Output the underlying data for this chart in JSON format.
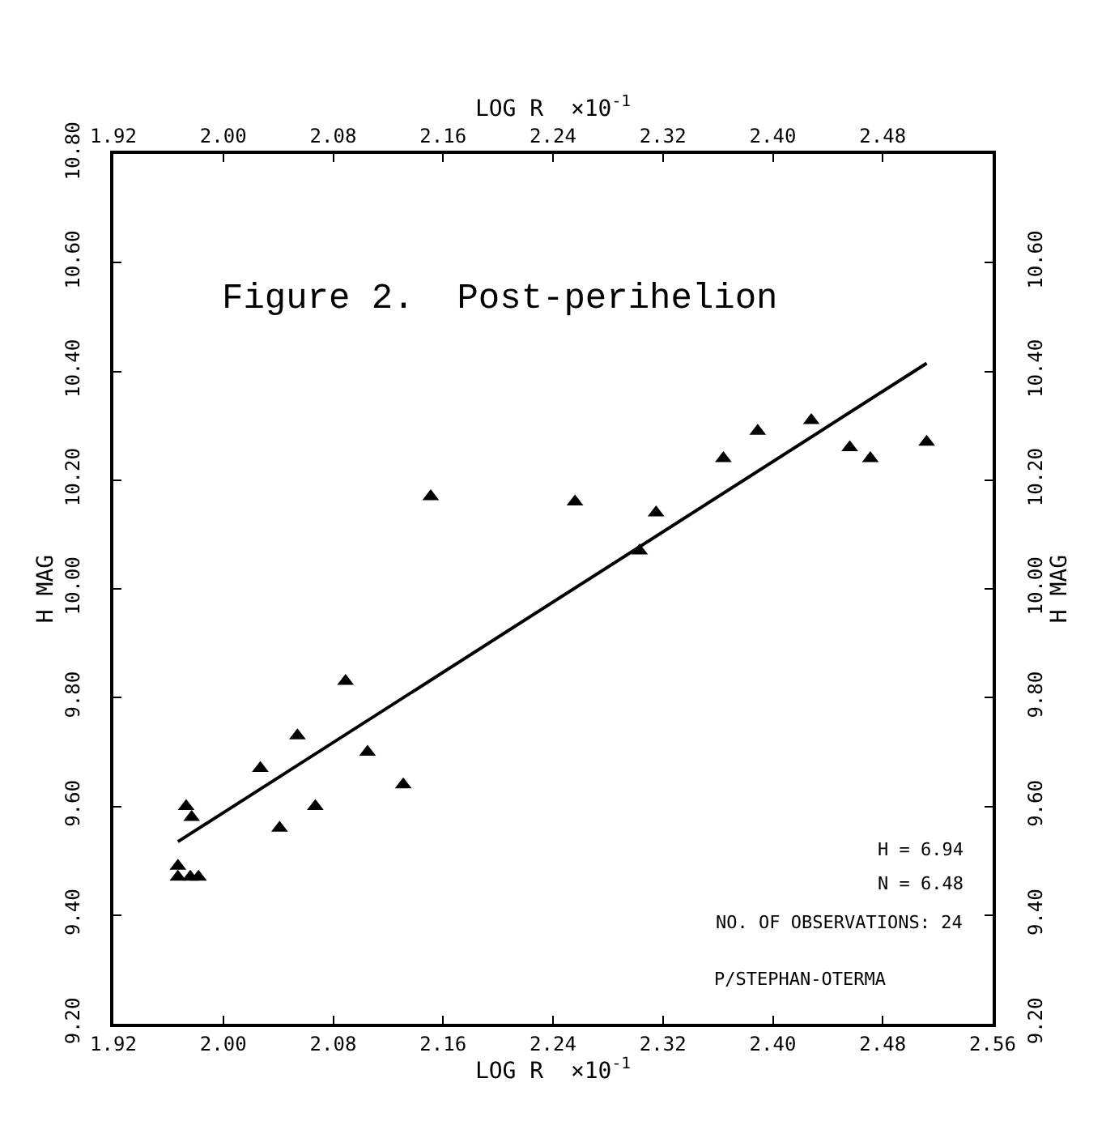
{
  "chart_data": {
    "type": "scatter",
    "title": "Figure 2.  Post-perihelion",
    "xlabel": "LOG R  ×10$^{-1}$",
    "x2label": "LOG R  ×10$^{-1}$",
    "ylabel": "H MAG",
    "y2label": "H MAG",
    "series": [
      {
        "color": "#000000",
        "marker": "triangle",
        "x": [
          2.151,
          2.089,
          2.054,
          2.027,
          2.105,
          2.131,
          2.067,
          1.973,
          1.977,
          2.041,
          1.967,
          1.967,
          1.976,
          1.982,
          2.256,
          2.315,
          2.303,
          2.364,
          2.389,
          2.428,
          2.456,
          2.471,
          2.512
        ],
        "values": [
          10.17,
          9.83,
          9.73,
          9.67,
          9.7,
          9.64,
          9.6,
          9.6,
          9.58,
          9.56,
          9.49,
          9.47,
          9.47,
          9.47,
          10.16,
          10.14,
          10.07,
          10.24,
          10.29,
          10.31,
          10.26,
          10.24,
          10.27
        ]
      },
      {
        "type": "line",
        "color": "#000000",
        "line_style": "solid",
        "x": [
          1.967,
          2.512
        ],
        "values": [
          9.535,
          10.415
        ]
      }
    ],
    "xlim": [
      1.92,
      2.56
    ],
    "x2lim": [
      1.92,
      2.56
    ],
    "xticks": [
      {
        "value": 1.92,
        "label": "1.92"
      },
      {
        "value": 2.0,
        "label": "2.00"
      },
      {
        "value": 2.08,
        "label": "2.08"
      },
      {
        "value": 2.16,
        "label": "2.16"
      },
      {
        "value": 2.24,
        "label": "2.24"
      },
      {
        "value": 2.32,
        "label": "2.32"
      },
      {
        "value": 2.4,
        "label": "2.40"
      },
      {
        "value": 2.48,
        "label": "2.48"
      },
      {
        "value": 2.56,
        "label": "2.56"
      }
    ],
    "x2ticks": [
      {
        "value": 1.92,
        "label": "1.92"
      },
      {
        "value": 2.0,
        "label": "2.00"
      },
      {
        "value": 2.08,
        "label": "2.08"
      },
      {
        "value": 2.16,
        "label": "2.16"
      },
      {
        "value": 2.24,
        "label": "2.24"
      },
      {
        "value": 2.32,
        "label": "2.32"
      },
      {
        "value": 2.4,
        "label": "2.40"
      },
      {
        "value": 2.48,
        "label": "2.48"
      }
    ],
    "ylim": [
      9.2,
      10.8
    ],
    "y2lim": [
      9.2,
      10.8
    ],
    "yticks": [
      {
        "value": 9.2,
        "label": "9.20"
      },
      {
        "value": 9.4,
        "label": "9.40"
      },
      {
        "value": 9.6,
        "label": "9.60"
      },
      {
        "value": 9.8,
        "label": "9.80"
      },
      {
        "value": 10.0,
        "label": "10.00"
      },
      {
        "value": 10.2,
        "label": "10.20"
      },
      {
        "value": 10.4,
        "label": "10.40"
      },
      {
        "value": 10.6,
        "label": "10.60"
      },
      {
        "value": 10.8,
        "label": "10.80"
      }
    ],
    "y2ticks": [
      {
        "value": 9.2,
        "label": "9.20"
      },
      {
        "value": 9.4,
        "label": "9.40"
      },
      {
        "value": 9.6,
        "label": "9.60"
      },
      {
        "value": 9.8,
        "label": "9.80"
      },
      {
        "value": 10.0,
        "label": "10.00"
      },
      {
        "value": 10.2,
        "label": "10.20"
      },
      {
        "value": 10.4,
        "label": "10.40"
      },
      {
        "value": 10.6,
        "label": "10.60"
      }
    ],
    "annotations": [
      "H = 6.94",
      "N = 6.48",
      "NO. OF OBSERVATIONS: 24",
      "P/STEPHAN-OTERMA"
    ]
  }
}
